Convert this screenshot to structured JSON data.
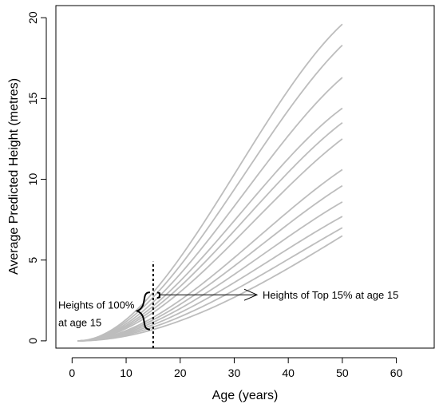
{
  "chart_data": {
    "type": "line",
    "title": "",
    "xlabel": "Age (years)",
    "ylabel": "Average Predicted Height (metres)",
    "xlim": [
      -3,
      67
    ],
    "ylim": [
      -0.45,
      20.75
    ],
    "xticks": [
      0,
      10,
      20,
      30,
      40,
      50,
      60
    ],
    "yticks": [
      0,
      5,
      10,
      15,
      20
    ],
    "grid": false,
    "line_color": "#bdbdbd",
    "x_start": 1,
    "x_end": 50,
    "final_heights": [
      6.5,
      7.0,
      7.7,
      8.6,
      9.6,
      10.6,
      12.5,
      13.5,
      14.4,
      16.3,
      18.3,
      19.6
    ],
    "heights_at_age_15": [
      0.7,
      0.85,
      1.0,
      1.15,
      1.3,
      1.45,
      1.75,
      1.95,
      2.15,
      2.4,
      2.7,
      3.0
    ],
    "reference_line": {
      "x": 15,
      "style": "dotted",
      "ymin": -0.45,
      "ymax": 4.9
    },
    "annotations": {
      "all_label_line1": "Heights of 100%",
      "all_label_line2": "at age 15",
      "top_label": "Heights of Top 15% at age 15"
    }
  }
}
